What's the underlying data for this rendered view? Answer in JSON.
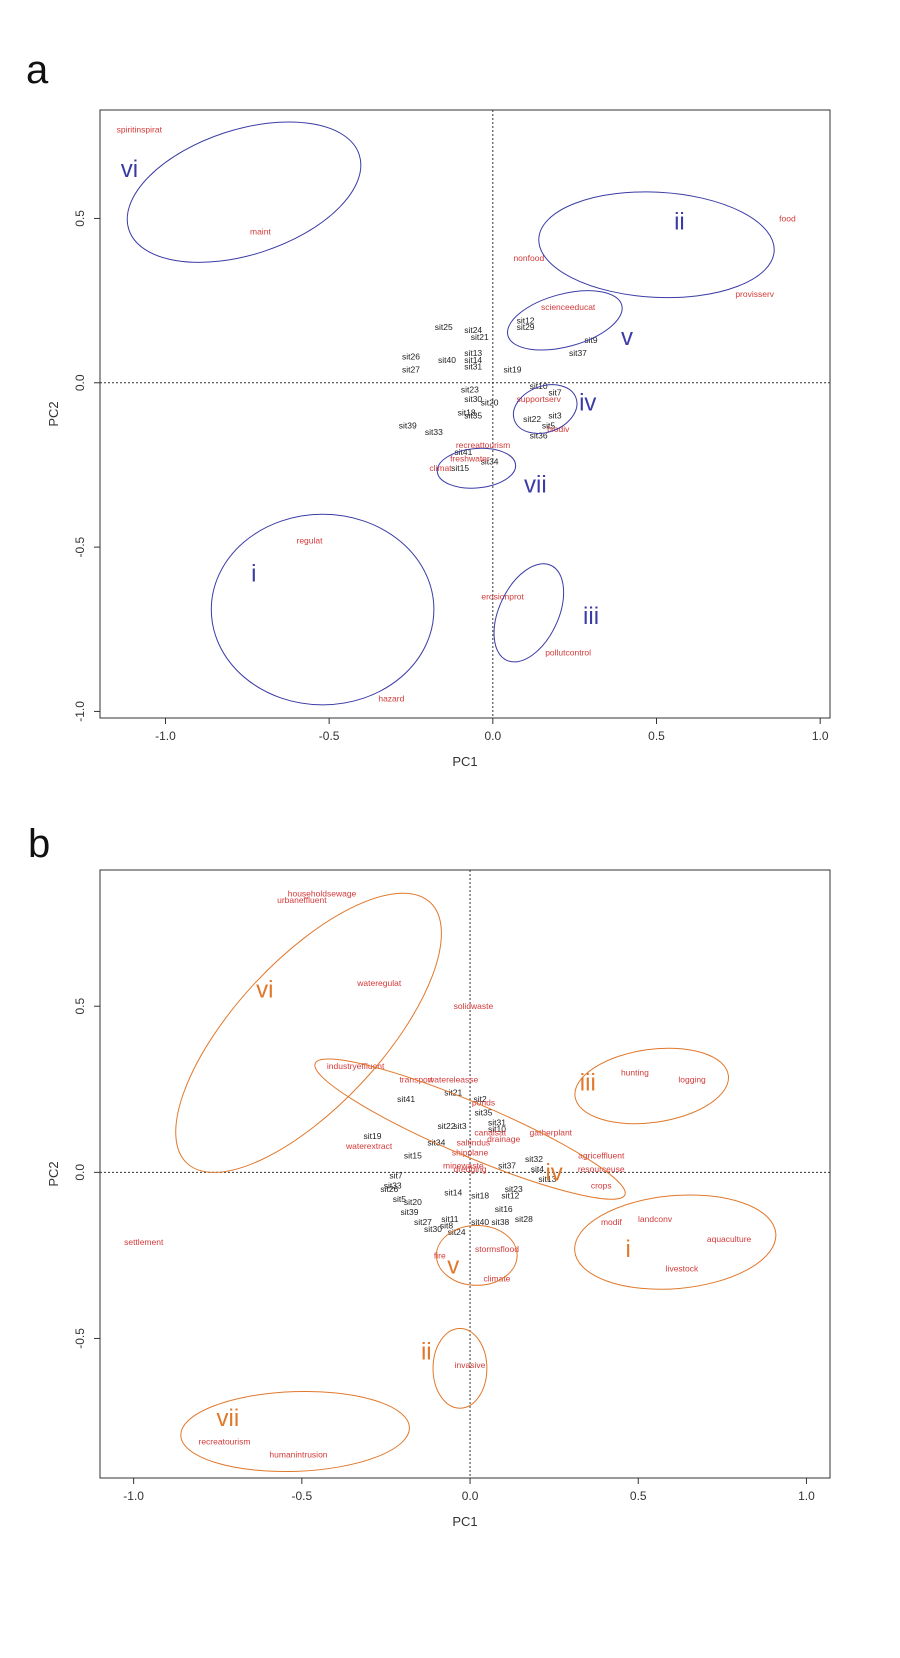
{
  "colors": {
    "variable": "#d43a3a",
    "site": "#222222",
    "frame": "#333333",
    "panel_a_groups": "#3b3ba6",
    "panel_b_groups": "#e0782c"
  },
  "chart_data": [
    {
      "type": "scatter",
      "panel": "a",
      "xlabel": "PC1",
      "ylabel": "PC2",
      "xlim": [
        -1.2,
        1.03
      ],
      "ylim": [
        -1.02,
        0.83
      ],
      "xticks": [
        -1.0,
        -0.5,
        0.0,
        0.5,
        1.0
      ],
      "yticks": [
        -1.0,
        -0.5,
        0.0,
        0.5
      ],
      "xtick_labels": [
        "-1.0",
        "-0.5",
        "0.0",
        "0.5",
        "1.0"
      ],
      "ytick_labels": [
        "-1.0",
        "-0.5",
        "0.0",
        "0.5"
      ],
      "variables": [
        {
          "label": "spiritinspirat",
          "x": -1.08,
          "y": 0.77
        },
        {
          "label": "maint",
          "x": -0.71,
          "y": 0.46
        },
        {
          "label": "food",
          "x": 0.9,
          "y": 0.5
        },
        {
          "label": "nonfood",
          "x": 0.11,
          "y": 0.38
        },
        {
          "label": "provisserv",
          "x": 0.8,
          "y": 0.27
        },
        {
          "label": "scienceeducat",
          "x": 0.23,
          "y": 0.23
        },
        {
          "label": "supportserv",
          "x": 0.14,
          "y": -0.05
        },
        {
          "label": "biodiv",
          "x": 0.2,
          "y": -0.14
        },
        {
          "label": "recreattourism",
          "x": -0.03,
          "y": -0.19
        },
        {
          "label": "freshwater",
          "x": -0.07,
          "y": -0.23
        },
        {
          "label": "climat",
          "x": -0.16,
          "y": -0.26
        },
        {
          "label": "regulat",
          "x": -0.56,
          "y": -0.48
        },
        {
          "label": "erosionprot",
          "x": 0.03,
          "y": -0.65
        },
        {
          "label": "pollutcontrol",
          "x": 0.23,
          "y": -0.82
        },
        {
          "label": "hazard",
          "x": -0.31,
          "y": -0.96
        }
      ],
      "sites": [
        {
          "label": "sit25",
          "x": -0.15,
          "y": 0.17
        },
        {
          "label": "sit26",
          "x": -0.25,
          "y": 0.08
        },
        {
          "label": "sit27",
          "x": -0.25,
          "y": 0.04
        },
        {
          "label": "sit40",
          "x": -0.14,
          "y": 0.07
        },
        {
          "label": "sit21",
          "x": -0.04,
          "y": 0.14
        },
        {
          "label": "sit13",
          "x": -0.06,
          "y": 0.09
        },
        {
          "label": "sit14",
          "x": -0.06,
          "y": 0.07
        },
        {
          "label": "sit31",
          "x": -0.06,
          "y": 0.05
        },
        {
          "label": "sit24",
          "x": -0.06,
          "y": 0.16
        },
        {
          "label": "sit19",
          "x": 0.06,
          "y": 0.04
        },
        {
          "label": "sit12",
          "x": 0.1,
          "y": 0.19
        },
        {
          "label": "sit29",
          "x": 0.1,
          "y": 0.17
        },
        {
          "label": "sit9",
          "x": 0.3,
          "y": 0.13
        },
        {
          "label": "sit37",
          "x": 0.26,
          "y": 0.09
        },
        {
          "label": "sit23",
          "x": -0.07,
          "y": -0.02
        },
        {
          "label": "sit30",
          "x": -0.06,
          "y": -0.05
        },
        {
          "label": "sit20",
          "x": -0.01,
          "y": -0.06
        },
        {
          "label": "sit18",
          "x": -0.08,
          "y": -0.09
        },
        {
          "label": "sit35",
          "x": -0.06,
          "y": -0.1
        },
        {
          "label": "sit10",
          "x": 0.14,
          "y": -0.01
        },
        {
          "label": "sit7",
          "x": 0.19,
          "y": -0.03
        },
        {
          "label": "sit22",
          "x": 0.12,
          "y": -0.11
        },
        {
          "label": "sit3",
          "x": 0.19,
          "y": -0.1
        },
        {
          "label": "sit5",
          "x": 0.17,
          "y": -0.13
        },
        {
          "label": "sit36",
          "x": 0.14,
          "y": -0.16
        },
        {
          "label": "sit39",
          "x": -0.26,
          "y": -0.13
        },
        {
          "label": "sit33",
          "x": -0.18,
          "y": -0.15
        },
        {
          "label": "sit41",
          "x": -0.09,
          "y": -0.21
        },
        {
          "label": "sit15",
          "x": -0.1,
          "y": -0.26
        },
        {
          "label": "sit34",
          "x": -0.01,
          "y": -0.24
        }
      ],
      "groups": [
        {
          "label": "vi",
          "cx": -0.76,
          "cy": 0.58,
          "rx": 0.37,
          "ry": 0.19,
          "angle": -18,
          "tx": -1.11,
          "ty": 0.65
        },
        {
          "label": "ii",
          "cx": 0.5,
          "cy": 0.42,
          "rx": 0.36,
          "ry": 0.16,
          "angle": 3,
          "tx": 0.57,
          "ty": 0.49
        },
        {
          "label": "v",
          "cx": 0.22,
          "cy": 0.19,
          "rx": 0.18,
          "ry": 0.08,
          "angle": -15,
          "tx": 0.41,
          "ty": 0.14
        },
        {
          "label": "iv",
          "cx": 0.16,
          "cy": -0.08,
          "rx": 0.1,
          "ry": 0.07,
          "angle": -20,
          "tx": 0.29,
          "ty": -0.06
        },
        {
          "label": "vii",
          "cx": -0.05,
          "cy": -0.26,
          "rx": 0.12,
          "ry": 0.06,
          "angle": -5,
          "tx": 0.13,
          "ty": -0.31
        },
        {
          "label": "i",
          "cx": -0.52,
          "cy": -0.69,
          "rx": 0.34,
          "ry": 0.29,
          "angle": 0,
          "tx": -0.73,
          "ty": -0.58
        },
        {
          "label": "iii",
          "cx": 0.11,
          "cy": -0.7,
          "rx": 0.16,
          "ry": 0.09,
          "angle": -65,
          "tx": 0.3,
          "ty": -0.71
        }
      ]
    },
    {
      "type": "scatter",
      "panel": "b",
      "xlabel": "PC1",
      "ylabel": "PC2",
      "xlim": [
        -1.1,
        1.07
      ],
      "ylim": [
        -0.92,
        0.91
      ],
      "xticks": [
        -1.0,
        -0.5,
        0.0,
        0.5,
        1.0
      ],
      "yticks": [
        -0.5,
        0.0,
        0.5
      ],
      "xtick_labels": [
        "-1.0",
        "-0.5",
        "0.0",
        "0.5",
        "1.0"
      ],
      "ytick_labels": [
        "-0.5",
        "0.0",
        "0.5"
      ],
      "variables": [
        {
          "label": "householdsewage",
          "x": -0.44,
          "y": 0.84
        },
        {
          "label": "urbaneffluent",
          "x": -0.5,
          "y": 0.82
        },
        {
          "label": "wateregulat",
          "x": -0.27,
          "y": 0.57
        },
        {
          "label": "solidwaste",
          "x": 0.01,
          "y": 0.5
        },
        {
          "label": "industryeffluent",
          "x": -0.34,
          "y": 0.32
        },
        {
          "label": "transport",
          "x": -0.16,
          "y": 0.28
        },
        {
          "label": "watereleasse",
          "x": -0.05,
          "y": 0.28
        },
        {
          "label": "ponds",
          "x": 0.04,
          "y": 0.21
        },
        {
          "label": "canalsat",
          "x": 0.06,
          "y": 0.12
        },
        {
          "label": "drainage",
          "x": 0.1,
          "y": 0.1
        },
        {
          "label": "gatherplant",
          "x": 0.24,
          "y": 0.12
        },
        {
          "label": "saltindus",
          "x": 0.01,
          "y": 0.09
        },
        {
          "label": "waterextract",
          "x": -0.3,
          "y": 0.08
        },
        {
          "label": "shipplane",
          "x": 0.0,
          "y": 0.06
        },
        {
          "label": "minewaste",
          "x": -0.02,
          "y": 0.02
        },
        {
          "label": "dredging",
          "x": 0.0,
          "y": 0.01
        },
        {
          "label": "hunting",
          "x": 0.49,
          "y": 0.3
        },
        {
          "label": "logging",
          "x": 0.66,
          "y": 0.28
        },
        {
          "label": "agriceffluent",
          "x": 0.39,
          "y": 0.05
        },
        {
          "label": "resourceuse",
          "x": 0.39,
          "y": 0.01
        },
        {
          "label": "crops",
          "x": 0.39,
          "y": -0.04
        },
        {
          "label": "modif",
          "x": 0.42,
          "y": -0.15
        },
        {
          "label": "landconv",
          "x": 0.55,
          "y": -0.14
        },
        {
          "label": "aquaculture",
          "x": 0.77,
          "y": -0.2
        },
        {
          "label": "livestock",
          "x": 0.63,
          "y": -0.29
        },
        {
          "label": "settlement",
          "x": -0.97,
          "y": -0.21
        },
        {
          "label": "fire",
          "x": -0.09,
          "y": -0.25
        },
        {
          "label": "stormsflood",
          "x": 0.08,
          "y": -0.23
        },
        {
          "label": "climate",
          "x": 0.08,
          "y": -0.32
        },
        {
          "label": "invasive",
          "x": 0.0,
          "y": -0.58
        },
        {
          "label": "recreatourism",
          "x": -0.73,
          "y": -0.81
        },
        {
          "label": "humanintrusion",
          "x": -0.51,
          "y": -0.85
        }
      ],
      "sites": [
        {
          "label": "sit21",
          "x": -0.05,
          "y": 0.24
        },
        {
          "label": "sit2",
          "x": 0.03,
          "y": 0.22
        },
        {
          "label": "sit41",
          "x": -0.19,
          "y": 0.22
        },
        {
          "label": "sit35",
          "x": 0.04,
          "y": 0.18
        },
        {
          "label": "sit31",
          "x": 0.08,
          "y": 0.15
        },
        {
          "label": "sit22",
          "x": -0.07,
          "y": 0.14
        },
        {
          "label": "sit3",
          "x": -0.03,
          "y": 0.14
        },
        {
          "label": "sit10",
          "x": 0.08,
          "y": 0.13
        },
        {
          "label": "sit19",
          "x": -0.29,
          "y": 0.11
        },
        {
          "label": "sit34",
          "x": -0.1,
          "y": 0.09
        },
        {
          "label": "sit15",
          "x": -0.17,
          "y": 0.05
        },
        {
          "label": "sit7",
          "x": -0.22,
          "y": -0.01
        },
        {
          "label": "sit33",
          "x": -0.23,
          "y": -0.04
        },
        {
          "label": "sit26",
          "x": -0.24,
          "y": -0.05
        },
        {
          "label": "sit5",
          "x": -0.21,
          "y": -0.08
        },
        {
          "label": "sit20",
          "x": -0.17,
          "y": -0.09
        },
        {
          "label": "sit39",
          "x": -0.18,
          "y": -0.12
        },
        {
          "label": "sit27",
          "x": -0.14,
          "y": -0.15
        },
        {
          "label": "sit30",
          "x": -0.11,
          "y": -0.17
        },
        {
          "label": "sit8",
          "x": -0.07,
          "y": -0.16
        },
        {
          "label": "sit24",
          "x": -0.04,
          "y": -0.18
        },
        {
          "label": "sit11",
          "x": -0.06,
          "y": -0.14
        },
        {
          "label": "sit14",
          "x": -0.05,
          "y": -0.06
        },
        {
          "label": "sit18",
          "x": 0.03,
          "y": -0.07
        },
        {
          "label": "sit37",
          "x": 0.11,
          "y": 0.02
        },
        {
          "label": "sit32",
          "x": 0.19,
          "y": 0.04
        },
        {
          "label": "sit4",
          "x": 0.2,
          "y": 0.01
        },
        {
          "label": "sit13",
          "x": 0.23,
          "y": -0.02
        },
        {
          "label": "sit23",
          "x": 0.13,
          "y": -0.05
        },
        {
          "label": "sit12",
          "x": 0.12,
          "y": -0.07
        },
        {
          "label": "sit16",
          "x": 0.1,
          "y": -0.11
        },
        {
          "label": "sit40",
          "x": 0.03,
          "y": -0.15
        },
        {
          "label": "sit38",
          "x": 0.09,
          "y": -0.15
        },
        {
          "label": "sit28",
          "x": 0.16,
          "y": -0.14
        }
      ],
      "groups": [
        {
          "label": "vi",
          "cx": -0.48,
          "cy": 0.42,
          "rx": 0.53,
          "ry": 0.22,
          "angle": -47,
          "tx": -0.61,
          "ty": 0.55
        },
        {
          "label": "iii",
          "cx": 0.54,
          "cy": 0.26,
          "rx": 0.23,
          "ry": 0.11,
          "angle": -8,
          "tx": 0.35,
          "ty": 0.27
        },
        {
          "label": "iv",
          "cx": 0.0,
          "cy": 0.13,
          "rx": 0.5,
          "ry": 0.08,
          "angle": 23,
          "tx": 0.25,
          "ty": 0.0
        },
        {
          "label": "i",
          "cx": 0.61,
          "cy": -0.21,
          "rx": 0.3,
          "ry": 0.14,
          "angle": -5,
          "tx": 0.47,
          "ty": -0.23
        },
        {
          "label": "v",
          "cx": 0.02,
          "cy": -0.25,
          "rx": 0.12,
          "ry": 0.09,
          "angle": 0,
          "tx": -0.05,
          "ty": -0.28
        },
        {
          "label": "ii",
          "cx": -0.03,
          "cy": -0.59,
          "rx": 0.08,
          "ry": 0.12,
          "angle": 0,
          "tx": -0.13,
          "ty": -0.54
        },
        {
          "label": "vii",
          "cx": -0.52,
          "cy": -0.78,
          "rx": 0.34,
          "ry": 0.12,
          "angle": -2,
          "tx": -0.72,
          "ty": -0.74
        }
      ]
    }
  ]
}
